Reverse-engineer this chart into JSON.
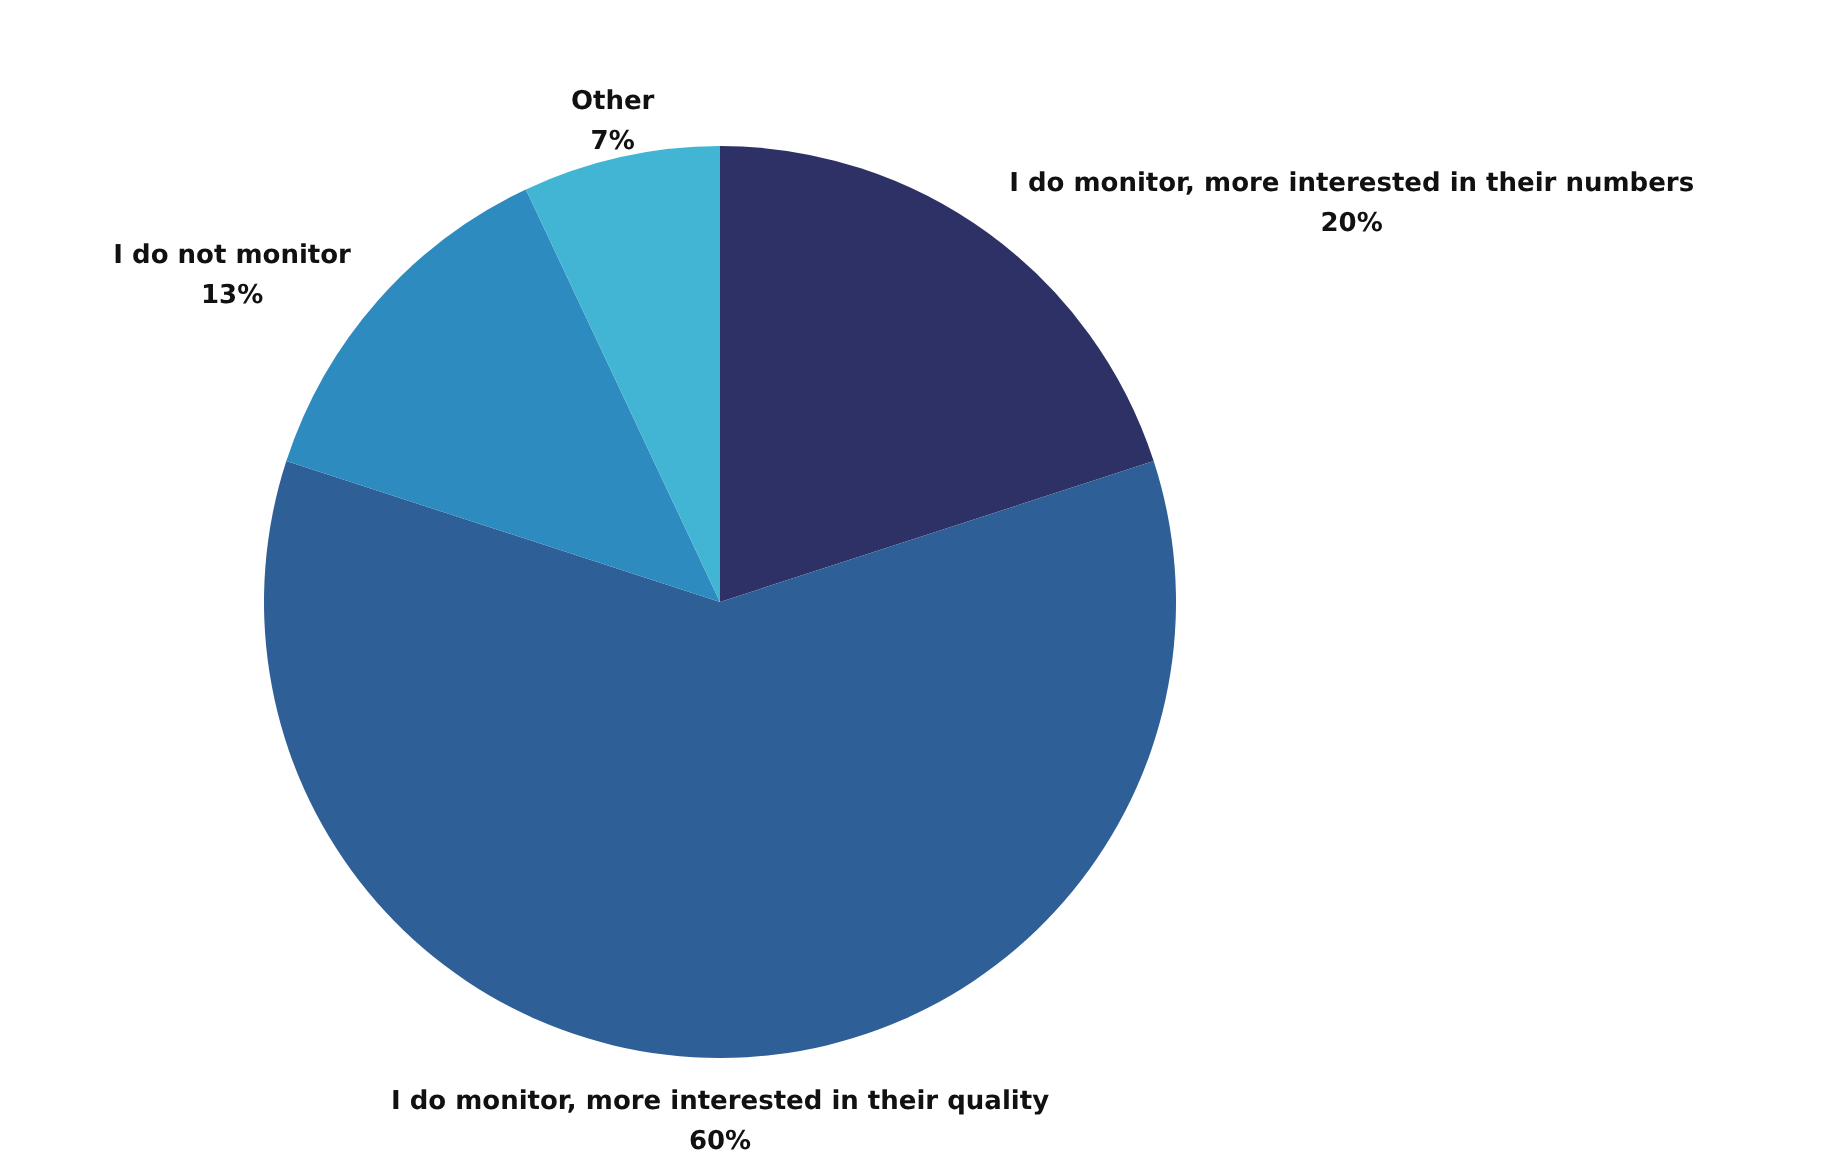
{
  "chart_data": {
    "type": "pie",
    "categories": [
      "I do monitor, more interested in their numbers",
      "I do monitor, more interested in their quality",
      "I do not monitor",
      "Other"
    ],
    "values": [
      20,
      60,
      13,
      7
    ],
    "value_labels": [
      "20%",
      "60%",
      "13%",
      "7%"
    ],
    "colors": [
      "#2e3166",
      "#2e5f96",
      "#2e8bbf",
      "#42b4d4"
    ],
    "legend": false
  }
}
